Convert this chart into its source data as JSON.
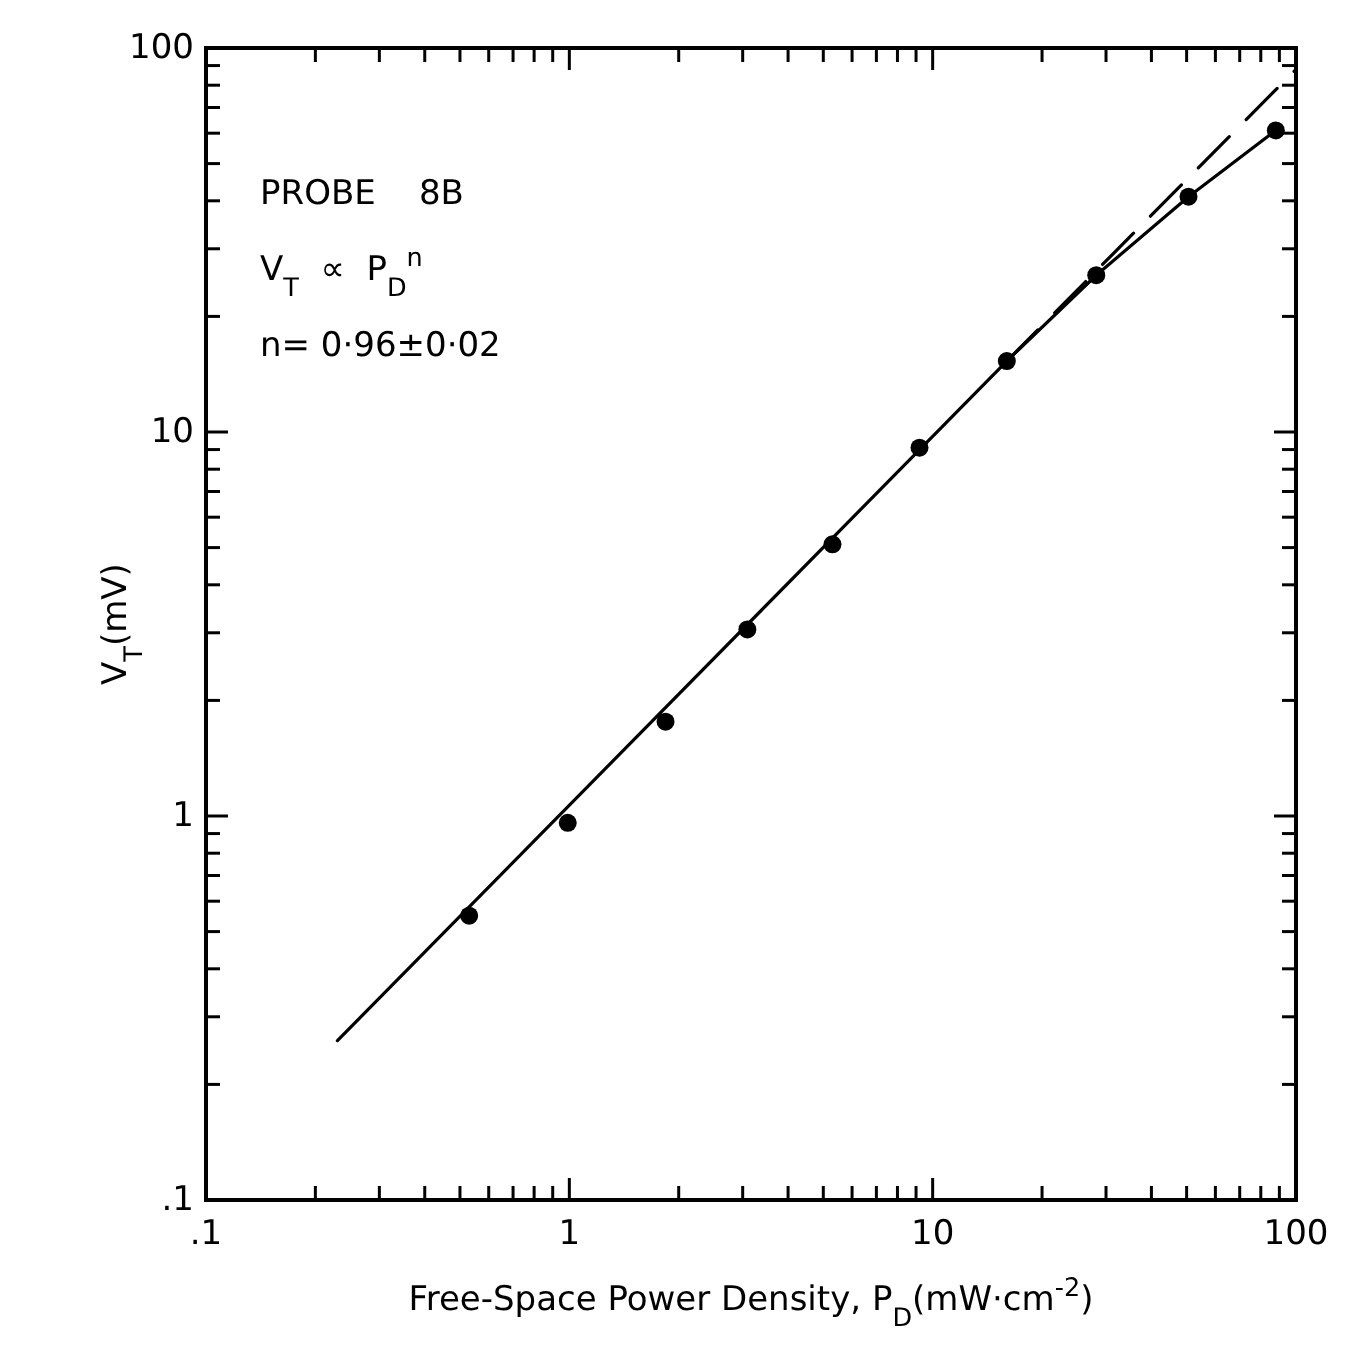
{
  "chart_data": {
    "type": "scatter",
    "xlabel": "Free-Space Power Density, P$_{D}$(mW·cm$^{-2}$)",
    "ylabel": "V$_{T}$(mV)",
    "log": "xy",
    "grid": false,
    "xlim": [
      0.1,
      100
    ],
    "ylim": [
      0.1,
      100
    ],
    "xticks": [
      {
        "value": 0.1,
        "label": ".1"
      },
      {
        "value": 0.2,
        "label": null
      },
      {
        "value": 0.3,
        "label": null
      },
      {
        "value": 0.4,
        "label": null
      },
      {
        "value": 0.5,
        "label": null
      },
      {
        "value": 0.6,
        "label": null
      },
      {
        "value": 0.7,
        "label": null
      },
      {
        "value": 0.8,
        "label": null
      },
      {
        "value": 0.9,
        "label": null
      },
      1,
      {
        "value": 2,
        "label": null
      },
      {
        "value": 3,
        "label": null
      },
      {
        "value": 4,
        "label": null
      },
      {
        "value": 5,
        "label": null
      },
      {
        "value": 6,
        "label": null
      },
      {
        "value": 7,
        "label": null
      },
      {
        "value": 8,
        "label": null
      },
      {
        "value": 9,
        "label": null
      },
      10,
      {
        "value": 20,
        "label": null
      },
      {
        "value": 30,
        "label": null
      },
      {
        "value": 40,
        "label": null
      },
      {
        "value": 50,
        "label": null
      },
      {
        "value": 60,
        "label": null
      },
      {
        "value": 70,
        "label": null
      },
      {
        "value": 80,
        "label": null
      },
      {
        "value": 90,
        "label": null
      },
      100
    ],
    "yticks": [
      {
        "value": 0.1,
        "label": ".1"
      },
      {
        "value": 0.2,
        "label": null
      },
      {
        "value": 0.3,
        "label": null
      },
      {
        "value": 0.4,
        "label": null
      },
      {
        "value": 0.5,
        "label": null
      },
      {
        "value": 0.6,
        "label": null
      },
      {
        "value": 0.7,
        "label": null
      },
      {
        "value": 0.8,
        "label": null
      },
      {
        "value": 0.9,
        "label": null
      },
      1,
      {
        "value": 2,
        "label": null
      },
      {
        "value": 3,
        "label": null
      },
      {
        "value": 4,
        "label": null
      },
      {
        "value": 5,
        "label": null
      },
      {
        "value": 6,
        "label": null
      },
      {
        "value": 7,
        "label": null
      },
      {
        "value": 8,
        "label": null
      },
      {
        "value": 9,
        "label": null
      },
      10,
      {
        "value": 20,
        "label": null
      },
      {
        "value": 30,
        "label": null
      },
      {
        "value": 40,
        "label": null
      },
      {
        "value": 50,
        "label": null
      },
      {
        "value": 60,
        "label": null
      },
      {
        "value": 70,
        "label": null
      },
      {
        "value": 80,
        "label": null
      },
      {
        "value": 90,
        "label": null
      },
      100
    ],
    "annotations": [
      "PROBE    8B",
      "V$_{T}$  ∝  P$_{D}$$^{n}$",
      "n= 0·96±0·02"
    ],
    "series": [
      {
        "type": "line",
        "color": "#000000",
        "marker": "none",
        "line_style": "solid",
        "x": [
          0.23,
          16,
          28.2,
          50.6,
          88
        ],
        "values": [
          0.26,
          15.3,
          25.6,
          41,
          61
        ]
      },
      {
        "type": "line",
        "color": "#000000",
        "marker": "none",
        "line_style": "dashed",
        "x": [
          16,
          100
        ],
        "values": [
          15.3,
          88
        ]
      },
      {
        "color": "#000000",
        "marker": "circle",
        "x": [
          0.53,
          0.99,
          1.84,
          3.09,
          5.3,
          9.2,
          16,
          28.2,
          50.6,
          88
        ],
        "values": [
          0.55,
          0.96,
          1.76,
          3.06,
          5.1,
          9.1,
          15.3,
          25.6,
          41,
          61
        ]
      }
    ]
  }
}
